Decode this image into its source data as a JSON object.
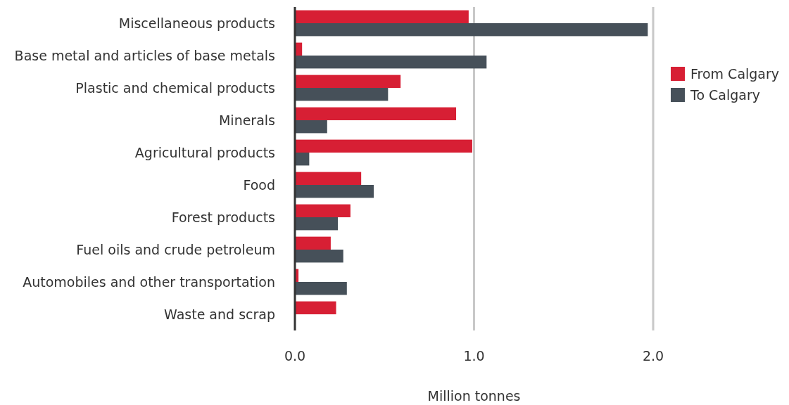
{
  "chart_data": {
    "type": "bar",
    "orientation": "horizontal",
    "xlabel": "Million tonnes",
    "categories": [
      "Miscellaneous products",
      "Base metal and articles of base metals",
      "Plastic and chemical products",
      "Minerals",
      "Agricultural products",
      "Food",
      "Forest products",
      "Fuel oils and crude petroleum",
      "Automobiles and other transportation",
      "Waste and scrap"
    ],
    "series": [
      {
        "name": "From Calgary",
        "color": "#d71f34",
        "values": [
          0.97,
          0.04,
          0.59,
          0.9,
          0.99,
          0.37,
          0.31,
          0.2,
          0.02,
          0.23
        ]
      },
      {
        "name": "To Calgary",
        "color": "#465059",
        "values": [
          1.97,
          1.07,
          0.52,
          0.18,
          0.08,
          0.44,
          0.24,
          0.27,
          0.29,
          null
        ]
      }
    ],
    "xlim": [
      0,
      2.0
    ],
    "xticks": [
      {
        "value": 0,
        "label": "0.0"
      },
      {
        "value": 1,
        "label": "1.0"
      },
      {
        "value": 2,
        "label": "2.0"
      }
    ],
    "grid": "x",
    "legend": "right"
  }
}
